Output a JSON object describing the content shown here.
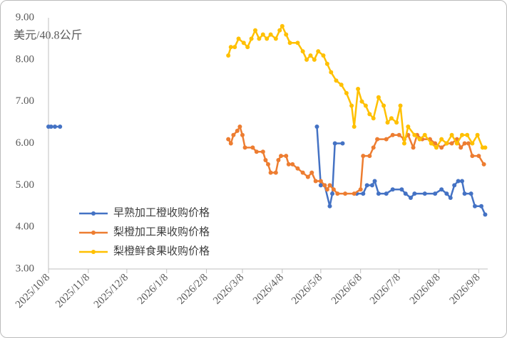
{
  "chart_data": {
    "type": "line",
    "y_label": "美元/40.8公斤",
    "xlim": [
      "2025/10/8",
      "2026/9/15"
    ],
    "xticks": [
      "2025/10/8",
      "2025/11/8",
      "2025/12/8",
      "2026/1/8",
      "2026/2/8",
      "2026/3/8",
      "2026/4/8",
      "2026/5/8",
      "2026/6/8",
      "2026/7/8",
      "2026/8/8",
      "2026/9/8"
    ],
    "ylim": [
      3,
      9
    ],
    "yticks": [
      {
        "value": 3,
        "label": "3.00"
      },
      {
        "value": 4,
        "label": "4.00"
      },
      {
        "value": 5,
        "label": "5.00"
      },
      {
        "value": 6,
        "label": "6.00"
      },
      {
        "value": 7,
        "label": "7.00"
      },
      {
        "value": 8,
        "label": "8.00"
      },
      {
        "value": 9,
        "label": "9.00"
      }
    ],
    "grid": false,
    "legend": "lower left",
    "series": [
      {
        "name": "早熟加工橙收购价格",
        "color": "#4472C4",
        "x": [
          "2025/10/8",
          "2025/10/10",
          "2025/10/13",
          "2025/10/17",
          "2026/1/1",
          "2026/5/5",
          "2026/5/8",
          "2026/5/11",
          "2026/5/15",
          "2026/5/17",
          "2026/5/19",
          "2026/5/25",
          "2026/5/30",
          "2026/6/5",
          "2026/6/10",
          "2026/6/13",
          "2026/6/17",
          "2026/6/19",
          "2026/6/22",
          "2026/6/28",
          "2026/7/3",
          "2026/7/10",
          "2026/7/13",
          "2026/7/17",
          "2026/7/20",
          "2026/7/28",
          "2026/8/5",
          "2026/8/10",
          "2026/8/14",
          "2026/8/17",
          "2026/8/20",
          "2026/8/23",
          "2026/8/26",
          "2026/8/28",
          "2026/9/2",
          "2026/9/5",
          "2026/9/10",
          "2026/9/13"
        ],
        "values": [
          6.4,
          6.4,
          6.4,
          6.4,
          null,
          6.4,
          5.0,
          5.0,
          4.5,
          4.8,
          6.0,
          6.0,
          null,
          4.8,
          4.8,
          5.0,
          5.0,
          5.1,
          4.8,
          4.8,
          4.9,
          4.9,
          4.8,
          4.7,
          4.8,
          4.8,
          4.8,
          4.9,
          4.8,
          4.7,
          5.0,
          5.1,
          5.1,
          4.8,
          4.8,
          4.5,
          4.5,
          4.3
        ]
      },
      {
        "name": "梨橙加工果收购价格",
        "color": "#ED7D31",
        "x": [
          "2026/2/25",
          "2026/2/27",
          "2026/3/1",
          "2026/3/4",
          "2026/3/6",
          "2026/3/8",
          "2026/3/10",
          "2026/3/16",
          "2026/3/19",
          "2026/3/24",
          "2026/3/26",
          "2026/3/28",
          "2026/3/30",
          "2026/4/3",
          "2026/4/5",
          "2026/4/7",
          "2026/4/11",
          "2026/4/13",
          "2026/4/16",
          "2026/4/20",
          "2026/4/24",
          "2026/4/28",
          "2026/5/1",
          "2026/5/4",
          "2026/5/8",
          "2026/5/11",
          "2026/5/13",
          "2026/5/15",
          "2026/5/18",
          "2026/5/21",
          "2026/5/27",
          "2026/6/3",
          "2026/6/8",
          "2026/6/10",
          "2026/6/15",
          "2026/6/18",
          "2026/6/21",
          "2026/6/28",
          "2026/7/3",
          "2026/7/8",
          "2026/7/12",
          "2026/7/15",
          "2026/7/19",
          "2026/7/22",
          "2026/7/26",
          "2026/8/1",
          "2026/8/5",
          "2026/8/10",
          "2026/8/14",
          "2026/8/18",
          "2026/8/22",
          "2026/8/25",
          "2026/8/28",
          "2026/8/31",
          "2026/9/3",
          "2026/9/8",
          "2026/9/12"
        ],
        "values": [
          6.1,
          6.0,
          6.2,
          6.3,
          6.4,
          6.2,
          5.9,
          5.9,
          5.8,
          5.8,
          5.6,
          5.5,
          5.3,
          5.3,
          5.6,
          5.7,
          5.7,
          5.5,
          5.5,
          5.4,
          5.3,
          5.2,
          5.3,
          5.1,
          5.1,
          5.0,
          4.9,
          5.0,
          4.9,
          4.8,
          4.8,
          4.8,
          4.9,
          5.7,
          5.7,
          5.9,
          6.1,
          6.1,
          6.2,
          6.2,
          6.1,
          6.2,
          5.9,
          6.2,
          6.1,
          6.1,
          6.0,
          5.9,
          6.0,
          6.0,
          6.1,
          5.9,
          6.0,
          6.0,
          5.7,
          5.7,
          5.5
        ]
      },
      {
        "name": "梨橙鲜食果收购价格",
        "color": "#FFC000",
        "x": [
          "2026/2/25",
          "2026/2/27",
          "2026/3/2",
          "2026/3/5",
          "2026/3/9",
          "2026/3/12",
          "2026/3/15",
          "2026/3/18",
          "2026/3/21",
          "2026/3/24",
          "2026/3/27",
          "2026/3/30",
          "2026/4/3",
          "2026/4/6",
          "2026/4/8",
          "2026/4/11",
          "2026/4/14",
          "2026/4/20",
          "2026/4/24",
          "2026/4/27",
          "2026/4/30",
          "2026/5/3",
          "2026/5/6",
          "2026/5/10",
          "2026/5/13",
          "2026/5/16",
          "2026/5/20",
          "2026/5/24",
          "2026/5/28",
          "2026/6/1",
          "2026/6/3",
          "2026/6/6",
          "2026/6/9",
          "2026/6/12",
          "2026/6/15",
          "2026/6/18",
          "2026/6/22",
          "2026/6/26",
          "2026/6/29",
          "2026/7/2",
          "2026/7/6",
          "2026/7/9",
          "2026/7/12",
          "2026/7/15",
          "2026/7/20",
          "2026/7/24",
          "2026/7/28",
          "2026/8/2",
          "2026/8/6",
          "2026/8/10",
          "2026/8/14",
          "2026/8/18",
          "2026/8/22",
          "2026/8/26",
          "2026/8/30",
          "2026/9/3",
          "2026/9/7",
          "2026/9/11",
          "2026/9/13"
        ],
        "values": [
          8.1,
          8.3,
          8.3,
          8.5,
          8.4,
          8.3,
          8.5,
          8.7,
          8.5,
          8.6,
          8.5,
          8.6,
          8.5,
          8.7,
          8.8,
          8.6,
          8.4,
          8.4,
          8.2,
          8.0,
          8.1,
          8.0,
          8.2,
          8.1,
          7.9,
          7.7,
          7.5,
          7.4,
          7.2,
          6.9,
          6.4,
          7.3,
          7.0,
          6.9,
          6.7,
          6.6,
          7.1,
          6.9,
          6.5,
          6.6,
          6.5,
          6.9,
          6.0,
          6.4,
          6.2,
          6.1,
          6.2,
          6.0,
          5.9,
          6.1,
          6.0,
          6.2,
          6.0,
          6.2,
          6.2,
          6.0,
          6.2,
          5.9,
          5.9
        ]
      }
    ]
  }
}
